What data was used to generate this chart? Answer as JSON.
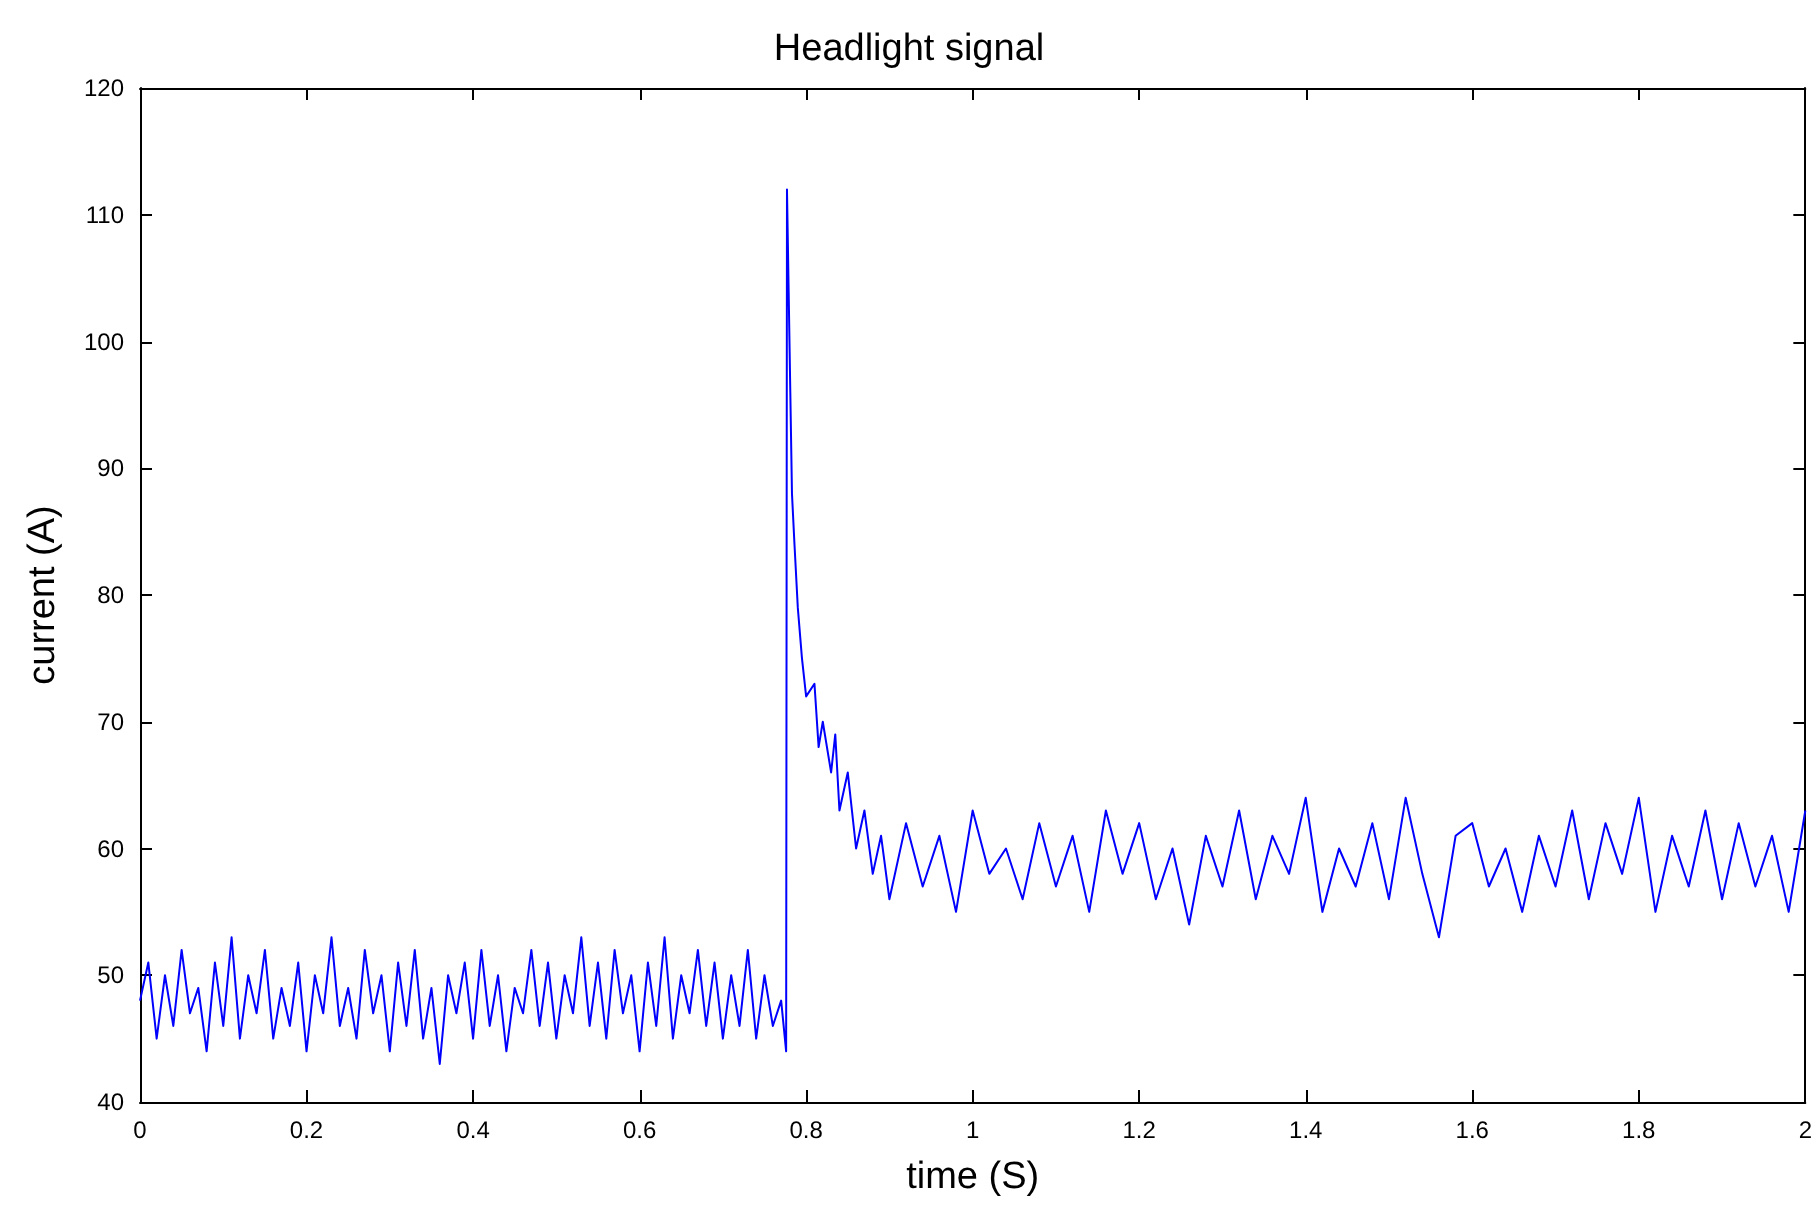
{
  "chart_data": {
    "type": "line",
    "title": "Headlight signal",
    "xlabel": "time (S)",
    "ylabel": "current (A)",
    "x": [
      0,
      0.01,
      0.02,
      0.03,
      0.04,
      0.05,
      0.06,
      0.07,
      0.08,
      0.09,
      0.1,
      0.11,
      0.12,
      0.13,
      0.14,
      0.15,
      0.16,
      0.17,
      0.18,
      0.19,
      0.2,
      0.21,
      0.22,
      0.23,
      0.24,
      0.25,
      0.26,
      0.27,
      0.28,
      0.29,
      0.3,
      0.31,
      0.32,
      0.33,
      0.34,
      0.35,
      0.36,
      0.37,
      0.38,
      0.39,
      0.4,
      0.41,
      0.42,
      0.43,
      0.44,
      0.45,
      0.46,
      0.47,
      0.48,
      0.49,
      0.5,
      0.51,
      0.52,
      0.53,
      0.54,
      0.55,
      0.56,
      0.57,
      0.58,
      0.59,
      0.6,
      0.61,
      0.62,
      0.63,
      0.64,
      0.65,
      0.66,
      0.67,
      0.68,
      0.69,
      0.7,
      0.71,
      0.72,
      0.73,
      0.74,
      0.75,
      0.76,
      0.77,
      0.776,
      0.777,
      0.779,
      0.781,
      0.783,
      0.786,
      0.79,
      0.795,
      0.8,
      0.81,
      0.815,
      0.82,
      0.83,
      0.835,
      0.84,
      0.85,
      0.86,
      0.87,
      0.88,
      0.89,
      0.9,
      0.92,
      0.94,
      0.96,
      0.98,
      1,
      1.02,
      1.04,
      1.06,
      1.08,
      1.1,
      1.12,
      1.14,
      1.16,
      1.18,
      1.2,
      1.22,
      1.24,
      1.26,
      1.28,
      1.3,
      1.32,
      1.34,
      1.36,
      1.38,
      1.4,
      1.42,
      1.44,
      1.46,
      1.48,
      1.5,
      1.52,
      1.54,
      1.56,
      1.58,
      1.6,
      1.62,
      1.64,
      1.66,
      1.68,
      1.7,
      1.72,
      1.74,
      1.76,
      1.78,
      1.8,
      1.82,
      1.84,
      1.86,
      1.88,
      1.9,
      1.92,
      1.94,
      1.96,
      1.98,
      2
    ],
    "series": [
      {
        "color": "#0000ff",
        "values": [
          48,
          51,
          45,
          50,
          46,
          52,
          47,
          49,
          44,
          51,
          46,
          53,
          45,
          50,
          47,
          52,
          45,
          49,
          46,
          51,
          44,
          50,
          47,
          53,
          46,
          49,
          45,
          52,
          47,
          50,
          44,
          51,
          46,
          52,
          45,
          49,
          43,
          50,
          47,
          51,
          45,
          52,
          46,
          50,
          44,
          49,
          47,
          52,
          46,
          51,
          45,
          50,
          47,
          53,
          46,
          51,
          45,
          52,
          47,
          50,
          44,
          51,
          46,
          53,
          45,
          50,
          47,
          52,
          46,
          51,
          45,
          50,
          46,
          52,
          45,
          50,
          46,
          48,
          44,
          112,
          104,
          96,
          88,
          84,
          79,
          75,
          72,
          73,
          68,
          70,
          66,
          69,
          63,
          66,
          60,
          63,
          58,
          61,
          56,
          62,
          57,
          61,
          55,
          63,
          58,
          60,
          56,
          62,
          57,
          61,
          55,
          63,
          58,
          62,
          56,
          60,
          54,
          61,
          57,
          63,
          56,
          61,
          58,
          64,
          55,
          60,
          57,
          62,
          56,
          64,
          58,
          53,
          61,
          62,
          57,
          60,
          55,
          61,
          57,
          63,
          56,
          62,
          58,
          64,
          55,
          61,
          57,
          63,
          56,
          62,
          57,
          61,
          55,
          63
        ]
      }
    ],
    "xlim": [
      0,
      2
    ],
    "xticks": [
      0,
      0.2,
      0.4,
      0.6,
      0.8,
      1,
      1.2,
      1.4,
      1.6,
      1.8,
      2
    ],
    "ylim": [
      40,
      120
    ],
    "yticks": [
      40,
      50,
      60,
      70,
      80,
      90,
      100,
      110,
      120
    ],
    "marker": "none",
    "line_style": "solid"
  }
}
